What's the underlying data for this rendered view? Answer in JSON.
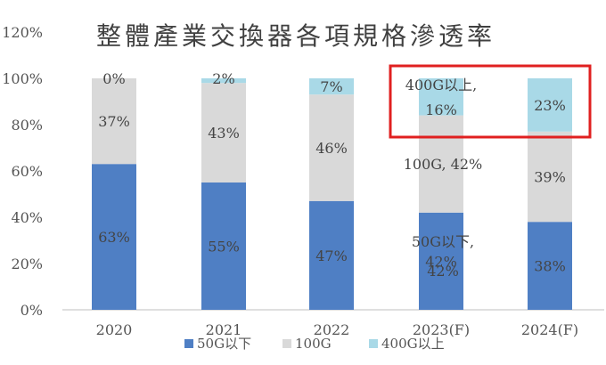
{
  "chart_data": {
    "type": "bar",
    "stacked": true,
    "title": "整體產業交換器各項規格滲透率",
    "categories": [
      "2020",
      "2021",
      "2022",
      "2023(F)",
      "2024(F)"
    ],
    "ylim": [
      0,
      120
    ],
    "yticks": [
      "0%",
      "20%",
      "40%",
      "60%",
      "80%",
      "100%",
      "120%"
    ],
    "grid": false,
    "legend_position": "bottom",
    "series": [
      {
        "name": "50G以下",
        "color": "#4f7fc4",
        "values": [
          63,
          55,
          47,
          42,
          38
        ],
        "labels": [
          "63%",
          "55%",
          "47%",
          "42%",
          "38%"
        ]
      },
      {
        "name": "100G",
        "color": "#d9d9d9",
        "values": [
          37,
          43,
          46,
          42,
          39
        ],
        "labels": [
          "37%",
          "43%",
          "46%",
          "",
          "39%"
        ]
      },
      {
        "name": "400G以上",
        "color": "#a9d9e7",
        "values": [
          0,
          2,
          7,
          16,
          23
        ],
        "labels": [
          "0%",
          "2%",
          "7%",
          "",
          "23%"
        ]
      }
    ],
    "annotations": [
      {
        "text": "50G以下,",
        "category": "2023(F)",
        "series": "50G以下"
      },
      {
        "text": "42%",
        "category": "2023(F)",
        "series": "50G以下"
      },
      {
        "text": "100G, 42%",
        "category": "2023(F)",
        "series": "100G"
      },
      {
        "text": "400G以上,",
        "category": "2023(F)",
        "series": "400G以上"
      },
      {
        "text": "16%",
        "category": "2023(F)",
        "series": "400G以上"
      }
    ],
    "highlight": {
      "shape": "rectangle",
      "color": "#e02020",
      "categories": [
        "2023(F)",
        "2024(F)"
      ],
      "series": "400G以上"
    }
  }
}
